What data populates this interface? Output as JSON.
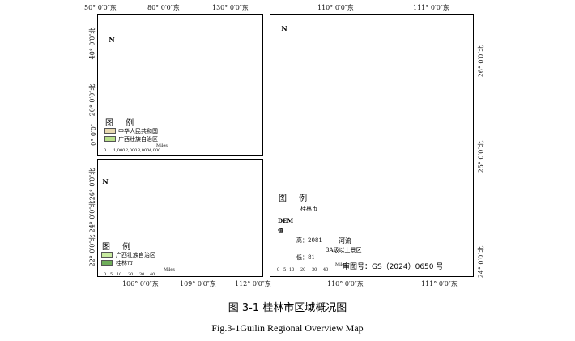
{
  "china_panel": {
    "top_coords": [
      "50° 0′0″东",
      "80° 0′0″东",
      "130° 0′0″东"
    ],
    "left_coords": [
      "40° 0′0″北",
      "20° 0′0″北",
      "0° 0′0″"
    ],
    "legend_title": "图 例",
    "legend_items": [
      {
        "label": "中华人民共和国",
        "color": "#e8d9b0"
      },
      {
        "label": "广西壮族自治区",
        "color": "#b9e08a"
      }
    ],
    "scale_labels": [
      "0",
      "1,000",
      "2,000",
      "3,000",
      "4,000"
    ],
    "scale_unit": "Miles",
    "north_label": "N"
  },
  "guangxi_panel": {
    "left_coords": [
      "26° 0′0″北",
      "24° 0′0″北",
      "22° 0′0″北"
    ],
    "bottom_coords": [
      "106° 0′0″东",
      "109° 0′0″东",
      "112° 0′0″东"
    ],
    "legend_title": "图 例",
    "legend_items": [
      {
        "label": "广西壮族自治区",
        "color": "#c8eba0"
      },
      {
        "label": "桂林市",
        "color": "#6fae5a"
      }
    ],
    "scale_labels": [
      "0",
      "5",
      "10",
      "20",
      "30",
      "40"
    ],
    "scale_unit": "Miles",
    "north_label": "N"
  },
  "guilin_panel": {
    "top_coords": [
      "110° 0′0″东",
      "111° 0′0″东"
    ],
    "bottom_coords": [
      "110° 0′0″东",
      "111° 0′0″东"
    ],
    "right_coords": [
      "26° 0′0″北",
      "25° 0′0″北",
      "24° 0′0″北"
    ],
    "legend_title": "图 例",
    "boundary_label": "桂林市",
    "dem_label": "DEM",
    "value_label": "值",
    "high_label": "高：2081",
    "low_label": "低：81",
    "river_label": "河流",
    "scenic_label": "3A级以上景区",
    "scale_labels": [
      "0",
      "5",
      "10",
      "20",
      "30",
      "40"
    ],
    "scale_unit": "Miles",
    "approval_text": "审图号：GS（2024）0650 号",
    "north_label": "N",
    "river_color": "#1f5fbf"
  },
  "caption_cn": "图 3-1  桂林市区域概况图",
  "caption_en": "Fig.3-1Guilin Regional Overview Map"
}
